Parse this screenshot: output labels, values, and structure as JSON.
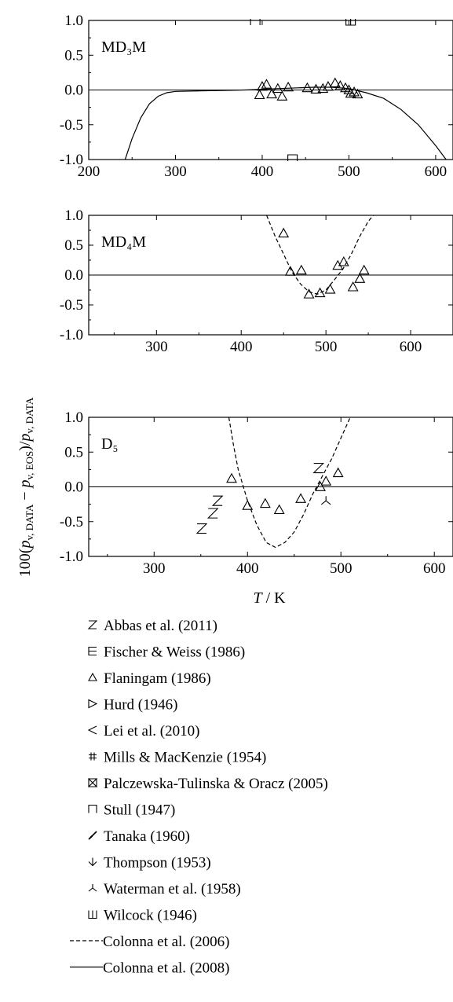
{
  "chart_data": [
    {
      "type": "scatter",
      "panel_label": "MD₃M",
      "xlim": [
        200,
        620
      ],
      "ylim": [
        -1.0,
        1.0
      ],
      "x_ticks": [
        "200",
        "300",
        "400",
        "500",
        "600"
      ],
      "y_ticks": [
        "1.0",
        "0.5",
        "0.0",
        "-0.5",
        "-1.0"
      ],
      "series": [
        {
          "name": "Flaningam (1986)",
          "marker": "triangle",
          "points": [
            [
              397,
              -0.07
            ],
            [
              400,
              0.05
            ],
            [
              405,
              0.08
            ],
            [
              411,
              -0.06
            ],
            [
              418,
              0.02
            ],
            [
              423,
              -0.09
            ],
            [
              430,
              0.04
            ],
            [
              452,
              0.03
            ],
            [
              462,
              0.01
            ],
            [
              470,
              0.02
            ],
            [
              476,
              0.05
            ],
            [
              484,
              0.1
            ],
            [
              490,
              0.06
            ],
            [
              496,
              0.03
            ],
            [
              500,
              0.0
            ],
            [
              502,
              -0.05
            ],
            [
              506,
              -0.03
            ],
            [
              510,
              -0.06
            ]
          ]
        },
        {
          "name": "Stull (1947)",
          "marker": "square-open",
          "points": [
            [
              392,
              1.0
            ],
            [
              435,
              -1.0
            ]
          ]
        },
        {
          "name": "Wilcock (1946)",
          "marker": "w-box",
          "points": [
            [
              502,
              1.0
            ]
          ]
        },
        {
          "name": "Colonna et al. (2008)",
          "line": "solid",
          "points": [
            [
              242,
              -1.0
            ],
            [
              250,
              -0.7
            ],
            [
              260,
              -0.4
            ],
            [
              270,
              -0.2
            ],
            [
              280,
              -0.09
            ],
            [
              290,
              -0.04
            ],
            [
              300,
              -0.02
            ],
            [
              340,
              -0.01
            ],
            [
              380,
              0.0
            ],
            [
              420,
              0.02
            ],
            [
              460,
              0.04
            ],
            [
              480,
              0.04
            ],
            [
              500,
              0.02
            ],
            [
              520,
              -0.04
            ],
            [
              540,
              -0.12
            ],
            [
              560,
              -0.28
            ],
            [
              580,
              -0.5
            ],
            [
              600,
              -0.8
            ],
            [
              612,
              -1.0
            ]
          ]
        }
      ]
    },
    {
      "type": "scatter",
      "panel_label": "MD₄M",
      "xlim": [
        220,
        650
      ],
      "ylim": [
        -1.0,
        1.0
      ],
      "x_ticks": [
        "300",
        "400",
        "500",
        "600"
      ],
      "y_ticks": [
        "1.0",
        "0.5",
        "0.0",
        "-0.5",
        "-1.0"
      ],
      "series": [
        {
          "name": "Flaningam (1986)",
          "marker": "triangle",
          "points": [
            [
              450,
              0.7
            ],
            [
              458,
              0.06
            ],
            [
              471,
              0.08
            ],
            [
              480,
              -0.32
            ],
            [
              493,
              -0.3
            ],
            [
              505,
              -0.24
            ],
            [
              514,
              0.16
            ],
            [
              521,
              0.22
            ],
            [
              532,
              -0.2
            ],
            [
              540,
              -0.06
            ],
            [
              545,
              0.08
            ]
          ]
        },
        {
          "name": "Colonna et al. (2006)",
          "line": "dashed",
          "points": [
            [
              430,
              1.0
            ],
            [
              440,
              0.65
            ],
            [
              450,
              0.35
            ],
            [
              460,
              0.05
            ],
            [
              470,
              -0.15
            ],
            [
              480,
              -0.28
            ],
            [
              490,
              -0.32
            ],
            [
              500,
              -0.25
            ],
            [
              510,
              -0.08
            ],
            [
              520,
              0.1
            ],
            [
              530,
              0.35
            ],
            [
              540,
              0.65
            ],
            [
              550,
              0.9
            ],
            [
              556,
              1.0
            ]
          ]
        }
      ]
    },
    {
      "type": "scatter",
      "panel_label": "D₅",
      "xlim": [
        230,
        620
      ],
      "ylim": [
        -1.0,
        1.0
      ],
      "x_ticks": [
        "300",
        "400",
        "500",
        "600"
      ],
      "y_ticks": [
        "1.0",
        "0.5",
        "0.0",
        "-0.5",
        "-1.0"
      ],
      "series": [
        {
          "name": "Abbas et al. (2011)",
          "marker": "z",
          "points": [
            [
              351,
              -0.6
            ],
            [
              363,
              -0.38
            ],
            [
              368,
              -0.2
            ],
            [
              476,
              0.27
            ]
          ]
        },
        {
          "name": "Flaningam (1986)",
          "marker": "triangle",
          "points": [
            [
              383,
              0.12
            ],
            [
              400,
              -0.27
            ],
            [
              419,
              -0.24
            ],
            [
              434,
              -0.33
            ],
            [
              457,
              -0.17
            ],
            [
              478,
              0.0
            ],
            [
              484,
              0.08
            ],
            [
              497,
              0.2
            ]
          ]
        },
        {
          "name": "Waterman et al. (1958)",
          "marker": "tri-down",
          "points": [
            [
              484,
              -0.2
            ]
          ]
        },
        {
          "name": "Colonna et al. (2006)",
          "line": "dashed",
          "points": [
            [
              380,
              1.0
            ],
            [
              385,
              0.6
            ],
            [
              390,
              0.25
            ],
            [
              400,
              -0.2
            ],
            [
              410,
              -0.55
            ],
            [
              420,
              -0.8
            ],
            [
              430,
              -0.87
            ],
            [
              440,
              -0.8
            ],
            [
              450,
              -0.65
            ],
            [
              460,
              -0.4
            ],
            [
              470,
              -0.1
            ],
            [
              480,
              0.15
            ],
            [
              490,
              0.4
            ],
            [
              500,
              0.7
            ],
            [
              510,
              1.0
            ]
          ]
        }
      ]
    }
  ],
  "xlabel": "T / K",
  "ylabel": "100(pv,DATA − pv,EOS)/pv,DATA",
  "legend": [
    {
      "symbol": "z",
      "label": "Abbas et al. (2011)"
    },
    {
      "symbol": "box-e",
      "label": "Fischer & Weiss (1986)"
    },
    {
      "symbol": "triangle",
      "label": "Flaningam (1986)"
    },
    {
      "symbol": "tri-right",
      "label": "Hurd (1946)"
    },
    {
      "symbol": "less-than",
      "label": "Lei et al. (2010)"
    },
    {
      "symbol": "hash",
      "label": "Mills & MacKenzie (1954)"
    },
    {
      "symbol": "hourglass",
      "label": "Palczewska-Tulinska & Oracz (2005)"
    },
    {
      "symbol": "square-open",
      "label": "Stull (1947)"
    },
    {
      "symbol": "arrow-sw",
      "label": "Tanaka (1960)"
    },
    {
      "symbol": "arrow-down",
      "label": "Thompson (1953)"
    },
    {
      "symbol": "tri-down",
      "label": "Waterman et al. (1958)"
    },
    {
      "symbol": "w-box",
      "label": "Wilcock (1946)"
    },
    {
      "symbol": "dashed-line",
      "label": "Colonna et al. (2006)"
    },
    {
      "symbol": "solid-line",
      "label": "Colonna et al. (2008)"
    }
  ]
}
